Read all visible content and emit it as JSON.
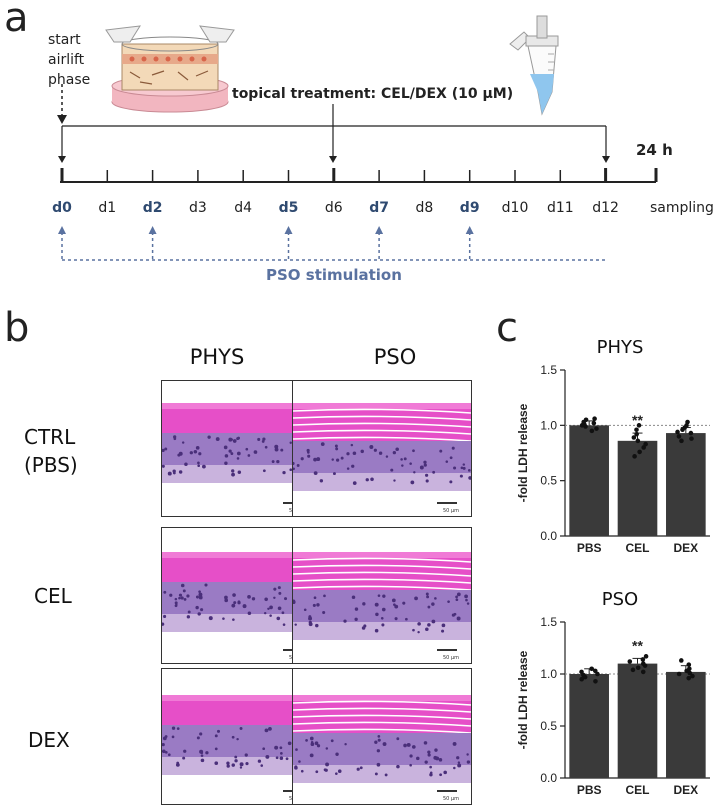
{
  "panel_a": {
    "letter": "a",
    "start_label": [
      "start",
      "airlift",
      "phase"
    ],
    "treatment_label": "topical treatment: CEL/DEX (10 μM)",
    "timepoint_24h": "24 h",
    "days": [
      {
        "label": "d0",
        "stim": true
      },
      {
        "label": "d1",
        "stim": false
      },
      {
        "label": "d2",
        "stim": true
      },
      {
        "label": "d3",
        "stim": false
      },
      {
        "label": "d4",
        "stim": false
      },
      {
        "label": "d5",
        "stim": true
      },
      {
        "label": "d6",
        "stim": false
      },
      {
        "label": "d7",
        "stim": true
      },
      {
        "label": "d8",
        "stim": false
      },
      {
        "label": "d9",
        "stim": true
      },
      {
        "label": "d10",
        "stim": false
      },
      {
        "label": "d11",
        "stim": false
      },
      {
        "label": "d12",
        "stim": false
      }
    ],
    "sampling_label": "sampling",
    "stimulation_label": "PSO stimulation",
    "colors": {
      "stim": "#5a72a0",
      "text": "#222222"
    }
  },
  "panel_b": {
    "letter": "b",
    "columns": [
      "PHYS",
      "PSO"
    ],
    "rows": [
      {
        "lines": [
          "CTRL",
          "(PBS)"
        ]
      },
      {
        "lines": [
          "CEL"
        ]
      },
      {
        "lines": [
          "DEX"
        ]
      }
    ],
    "scale_label": "50 µm"
  },
  "panel_c": {
    "letter": "c"
  },
  "chart_data": [
    {
      "type": "bar",
      "title": "PHYS",
      "categories": [
        "PBS",
        "CEL",
        "DEX"
      ],
      "values": [
        1.0,
        0.86,
        0.93
      ],
      "errors": [
        0.04,
        0.07,
        0.05
      ],
      "points": [
        [
          0.95,
          0.97,
          0.99,
          1.0,
          1.01,
          1.02,
          1.03,
          1.05,
          1.06
        ],
        [
          0.72,
          0.76,
          0.8,
          0.83,
          0.86,
          0.89,
          0.92,
          0.96,
          1.0
        ],
        [
          0.86,
          0.88,
          0.9,
          0.93,
          0.94,
          0.96,
          0.98,
          1.0,
          1.03
        ]
      ],
      "annotations": [
        "",
        "**",
        ""
      ],
      "ylabel": "-fold LDH release",
      "ylim": [
        0,
        1.5
      ],
      "yticks": [
        "0.0",
        "0.5",
        "1.0",
        "1.5"
      ],
      "reference_line": 1.0,
      "bar_color": "#3a3a3a"
    },
    {
      "type": "bar",
      "title": "PSO",
      "categories": [
        "PBS",
        "CEL",
        "DEX"
      ],
      "values": [
        1.0,
        1.1,
        1.02
      ],
      "errors": [
        0.05,
        0.05,
        0.06
      ],
      "points": [
        [
          0.93,
          0.95,
          0.97,
          0.99,
          1.0,
          1.02,
          1.03,
          1.05
        ],
        [
          1.02,
          1.04,
          1.06,
          1.08,
          1.1,
          1.12,
          1.14,
          1.17
        ],
        [
          0.96,
          0.98,
          1.0,
          1.01,
          1.03,
          1.05,
          1.09,
          1.13
        ]
      ],
      "annotations": [
        "",
        "**",
        ""
      ],
      "ylabel": "-fold LDH release",
      "ylim": [
        0,
        1.5
      ],
      "yticks": [
        "0.0",
        "0.5",
        "1.0",
        "1.5"
      ],
      "reference_line": 1.0,
      "bar_color": "#3a3a3a"
    }
  ]
}
